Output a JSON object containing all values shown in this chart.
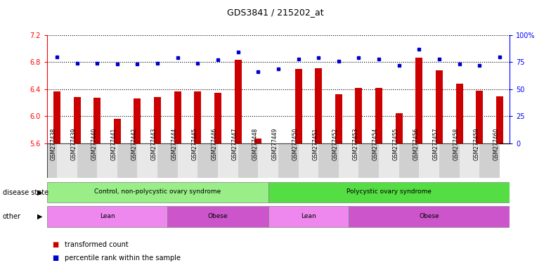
{
  "title": "GDS3841 / 215202_at",
  "samples": [
    "GSM277438",
    "GSM277439",
    "GSM277440",
    "GSM277441",
    "GSM277442",
    "GSM277443",
    "GSM277444",
    "GSM277445",
    "GSM277446",
    "GSM277447",
    "GSM277448",
    "GSM277449",
    "GSM277450",
    "GSM277451",
    "GSM277452",
    "GSM277453",
    "GSM277454",
    "GSM277455",
    "GSM277456",
    "GSM277457",
    "GSM277458",
    "GSM277459",
    "GSM277460"
  ],
  "transformed_count": [
    6.37,
    6.28,
    6.27,
    5.96,
    6.26,
    6.28,
    6.37,
    6.37,
    6.34,
    6.83,
    5.67,
    5.59,
    6.7,
    6.71,
    6.32,
    6.42,
    6.42,
    6.04,
    6.87,
    6.68,
    6.48,
    6.38,
    6.29
  ],
  "percentile_rank": [
    80,
    74,
    74,
    73,
    73,
    74,
    79,
    74,
    77,
    84,
    66,
    69,
    78,
    79,
    76,
    79,
    78,
    72,
    87,
    78,
    73,
    72,
    80
  ],
  "ylim_left": [
    5.6,
    7.2
  ],
  "ylim_right": [
    0,
    100
  ],
  "yticks_left": [
    5.6,
    6.0,
    6.4,
    6.8,
    7.2
  ],
  "yticks_right": [
    0,
    25,
    50,
    75,
    100
  ],
  "bar_color": "#cc0000",
  "dot_color": "#0000cc",
  "background_color": "#ffffff",
  "plot_bg_color": "#ffffff",
  "tick_bg_even": "#d0d0d0",
  "tick_bg_odd": "#e8e8e8",
  "disease_state_groups": [
    {
      "label": "Control, non-polycystic ovary syndrome",
      "start": 0,
      "end": 10,
      "color": "#99ee88"
    },
    {
      "label": "Polycystic ovary syndrome",
      "start": 11,
      "end": 22,
      "color": "#55dd44"
    }
  ],
  "other_groups": [
    {
      "label": "Lean",
      "start": 0,
      "end": 5,
      "color": "#ee88ee"
    },
    {
      "label": "Obese",
      "start": 6,
      "end": 10,
      "color": "#cc55cc"
    },
    {
      "label": "Lean",
      "start": 11,
      "end": 14,
      "color": "#ee88ee"
    },
    {
      "label": "Obese",
      "start": 15,
      "end": 22,
      "color": "#cc55cc"
    }
  ],
  "disease_label": "disease state",
  "other_label": "other",
  "legend_items": [
    {
      "label": "transformed count",
      "color": "#cc0000"
    },
    {
      "label": "percentile rank within the sample",
      "color": "#0000cc"
    }
  ]
}
